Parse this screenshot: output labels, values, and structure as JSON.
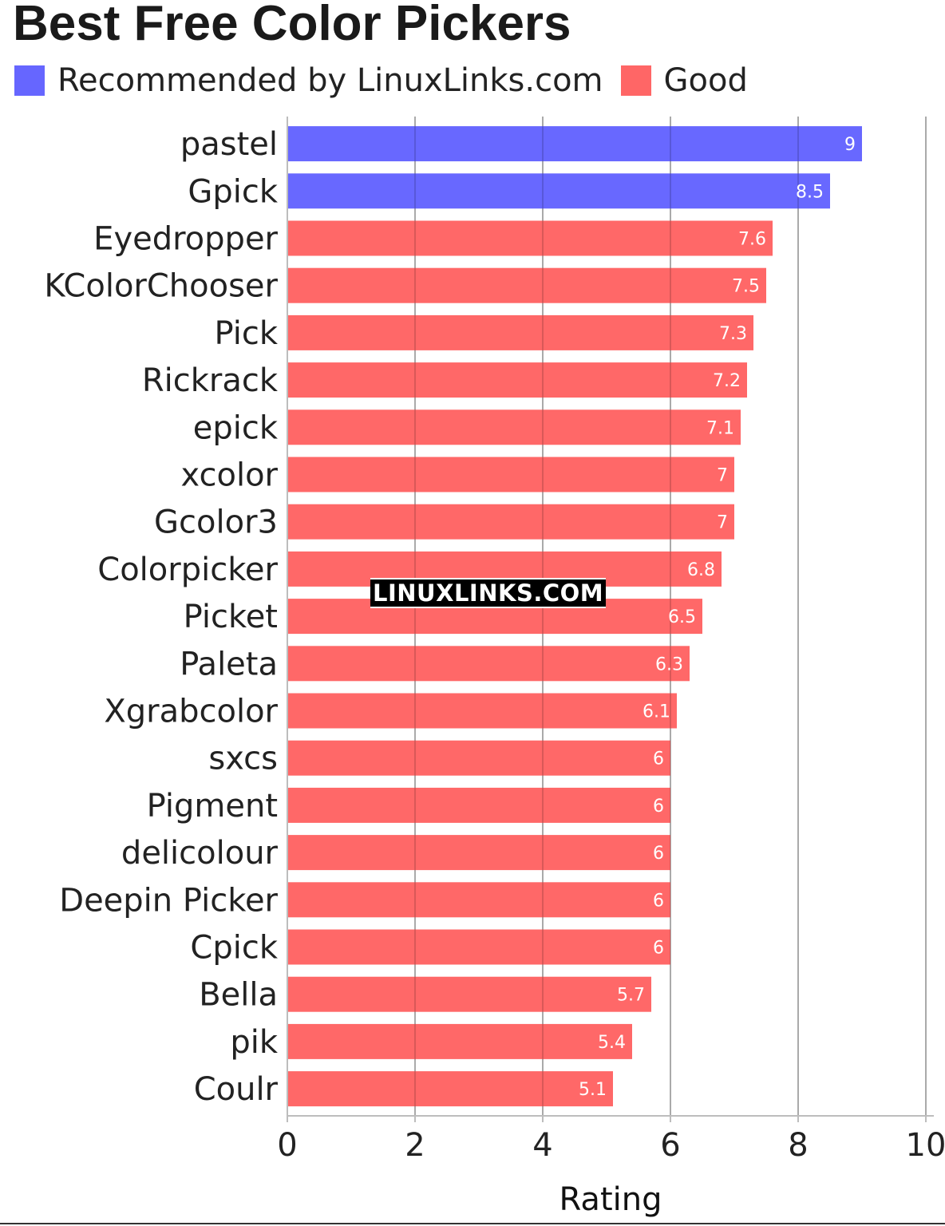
{
  "chart_data": {
    "type": "bar",
    "orientation": "horizontal",
    "title": "Best Free Color Pickers",
    "xlabel": "Rating",
    "ylabel": "",
    "xlim": [
      0,
      10
    ],
    "xticks": [
      0,
      2,
      4,
      6,
      8,
      10
    ],
    "grid": true,
    "legend_position": "top-left",
    "legend": [
      {
        "name": "Recommended by LinuxLinks.com",
        "color": "#6666ff"
      },
      {
        "name": "Good",
        "color": "#ff6666"
      }
    ],
    "categories": [
      "pastel",
      "Gpick",
      "Eyedropper",
      "KColorChooser",
      "Pick",
      "Rickrack",
      "epick",
      "xcolor",
      "Gcolor3",
      "Colorpicker",
      "Picket",
      "Paleta",
      "Xgrabcolor",
      "sxcs",
      "Pigment",
      "delicolour",
      "Deepin Picker",
      "Cpick",
      "Bella",
      "pik",
      "Coulr"
    ],
    "values": [
      9,
      8.5,
      7.6,
      7.5,
      7.3,
      7.2,
      7.1,
      7,
      7,
      6.8,
      6.5,
      6.3,
      6.1,
      6,
      6,
      6,
      6,
      6,
      5.7,
      5.4,
      5.1
    ],
    "value_labels": [
      "9",
      "8.5",
      "7.6",
      "7.5",
      "7.3",
      "7.2",
      "7.1",
      "7",
      "7",
      "6.8",
      "6.5",
      "6.3",
      "6.1",
      "6",
      "6",
      "6",
      "6",
      "6",
      "5.7",
      "5.4",
      "5.1"
    ],
    "groups": [
      0,
      0,
      1,
      1,
      1,
      1,
      1,
      1,
      1,
      1,
      1,
      1,
      1,
      1,
      1,
      1,
      1,
      1,
      1,
      1,
      1
    ]
  },
  "watermark": "LINUXLINKS.COM"
}
